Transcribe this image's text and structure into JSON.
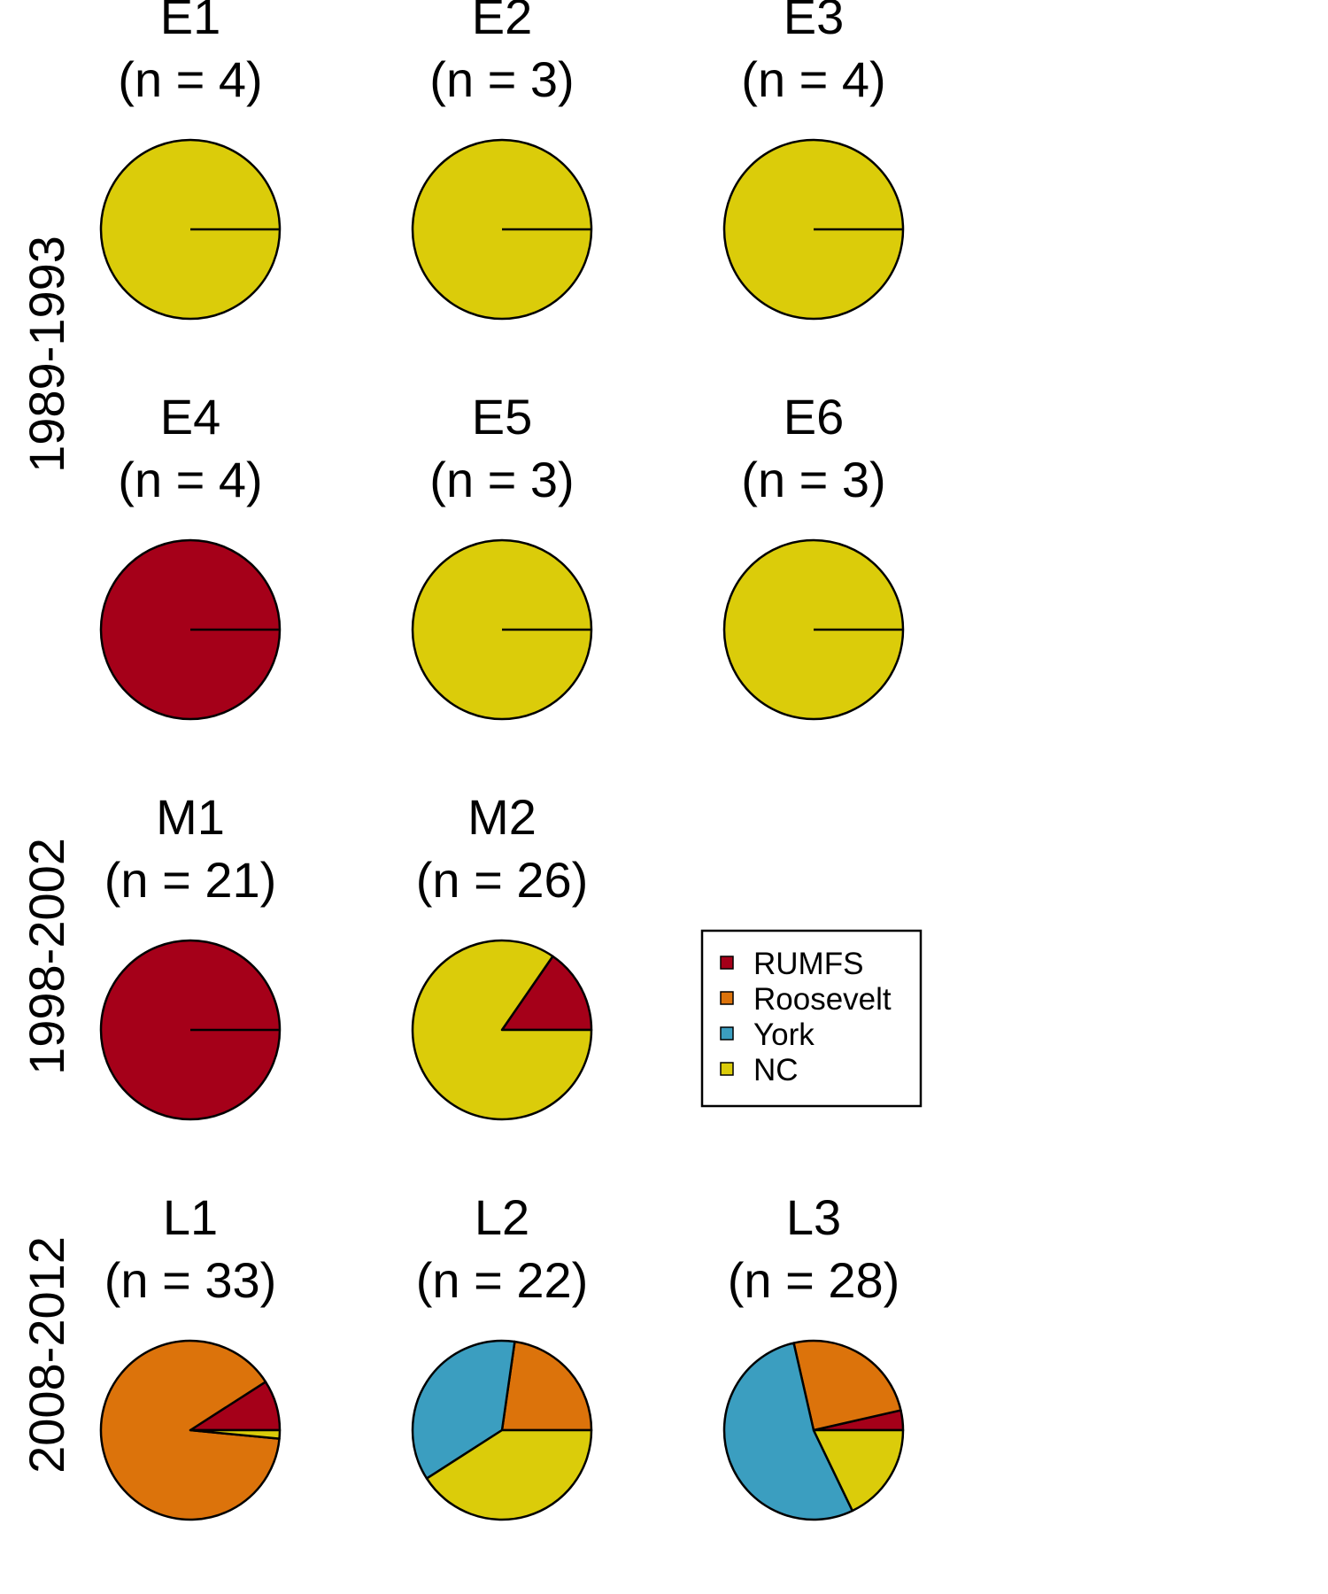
{
  "colors": {
    "RUMFS": "#a50019",
    "Roosevelt": "#dc730b",
    "York": "#3b9ec0",
    "NC": "#dbcc0a"
  },
  "chart_data": {
    "type": "pie",
    "legend": {
      "placement": "right",
      "entries": [
        "RUMFS",
        "Roosevelt",
        "York",
        "NC"
      ]
    },
    "period_labels": [
      "1989-1993",
      "1998-2002",
      "2008-2012"
    ],
    "pies": [
      {
        "name": "E1",
        "n_label": "(n = 4)",
        "values": {
          "RUMFS": 0,
          "Roosevelt": 0,
          "York": 0,
          "NC": 4
        }
      },
      {
        "name": "E2",
        "n_label": "(n = 3)",
        "values": {
          "RUMFS": 0,
          "Roosevelt": 0,
          "York": 0,
          "NC": 3
        }
      },
      {
        "name": "E3",
        "n_label": "(n = 4)",
        "values": {
          "RUMFS": 0,
          "Roosevelt": 0,
          "York": 0,
          "NC": 4
        }
      },
      {
        "name": "E4",
        "n_label": "(n = 4)",
        "values": {
          "RUMFS": 4,
          "Roosevelt": 0,
          "York": 0,
          "NC": 0
        }
      },
      {
        "name": "E5",
        "n_label": "(n = 3)",
        "values": {
          "RUMFS": 0,
          "Roosevelt": 0,
          "York": 0,
          "NC": 3
        }
      },
      {
        "name": "E6",
        "n_label": "(n = 3)",
        "values": {
          "RUMFS": 0,
          "Roosevelt": 0,
          "York": 0,
          "NC": 3
        }
      },
      {
        "name": "M1",
        "n_label": "(n = 21)",
        "values": {
          "RUMFS": 21,
          "Roosevelt": 0,
          "York": 0,
          "NC": 0
        }
      },
      {
        "name": "M2",
        "n_label": "(n = 26)",
        "values": {
          "RUMFS": 4,
          "Roosevelt": 0,
          "York": 0,
          "NC": 22
        }
      },
      {
        "name": "L1",
        "n_label": "(n = 33)",
        "values": {
          "RUMFS": 3,
          "Roosevelt": 29.5,
          "York": 0,
          "NC": 0.5
        }
      },
      {
        "name": "L2",
        "n_label": "(n = 22)",
        "values": {
          "RUMFS": 0,
          "Roosevelt": 5,
          "York": 8,
          "NC": 9
        }
      },
      {
        "name": "L3",
        "n_label": "(n = 28)",
        "values": {
          "RUMFS": 1,
          "Roosevelt": 7,
          "York": 15,
          "NC": 5
        }
      }
    ]
  }
}
